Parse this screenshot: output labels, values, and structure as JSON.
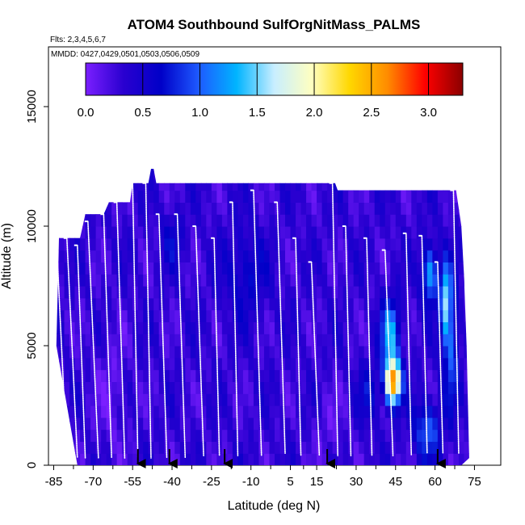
{
  "chart_data": {
    "type": "heatmap",
    "title": "ATOM4 Southbound SulfOrgNitMass_PALMS",
    "subtitle_flights": "Flts: 2,3,4,5,6,7",
    "subtitle_dates": "MMDD: 0427,0429,0501,0503,0506,0509",
    "xlabel": "Latitude (deg N)",
    "ylabel": "Altitude (m)",
    "xlim": [
      -87,
      85
    ],
    "ylim": [
      0,
      17500
    ],
    "x_ticks": [
      -85,
      -70,
      -55,
      -40,
      -25,
      -10,
      5,
      15,
      30,
      45,
      60,
      75
    ],
    "x_tick_labels": [
      "-85",
      "-70",
      "-55",
      "-40",
      "-25",
      "-10",
      "5",
      "15",
      "30",
      "45",
      "60",
      "75"
    ],
    "y_ticks": [
      0,
      5000,
      10000,
      15000
    ],
    "y_tick_labels": [
      "0",
      "5000",
      "10000",
      "15000"
    ],
    "colorbar": {
      "range": [
        0,
        3.3
      ],
      "ticks": [
        0,
        0.5,
        1,
        1.5,
        2,
        2.5,
        3
      ],
      "tick_labels": [
        "0.0",
        "0.5",
        "1.0",
        "1.5",
        "2.0",
        "2.5",
        "3.0"
      ],
      "stops": [
        "#7B1FFF",
        "#2A00D0",
        "#0000C8",
        "#1E5AFF",
        "#00B4FF",
        "#C8EEFF",
        "#FFFFC0",
        "#FFD700",
        "#FF8C00",
        "#FF0000",
        "#8B0000"
      ]
    },
    "ceiling_profile": [
      {
        "x": -84,
        "alt": 5000
      },
      {
        "x": -83,
        "alt": 9500
      },
      {
        "x": -75,
        "alt": 9500
      },
      {
        "x": -73,
        "alt": 10500
      },
      {
        "x": -66,
        "alt": 10500
      },
      {
        "x": -64,
        "alt": 11000
      },
      {
        "x": -56,
        "alt": 11000
      },
      {
        "x": -55,
        "alt": 11800
      },
      {
        "x": -49,
        "alt": 11800
      },
      {
        "x": -48,
        "alt": 12400
      },
      {
        "x": -47,
        "alt": 12400
      },
      {
        "x": -46,
        "alt": 11800
      },
      {
        "x": 22,
        "alt": 11800
      },
      {
        "x": 23,
        "alt": 11500
      },
      {
        "x": 68,
        "alt": 11500
      },
      {
        "x": 70,
        "alt": 10000
      },
      {
        "x": 71,
        "alt": 8000
      },
      {
        "x": 72,
        "alt": 5000
      },
      {
        "x": 73,
        "alt": 300
      }
    ],
    "floor_profile": [
      {
        "x": 73,
        "alt": 300
      },
      {
        "x": 70,
        "alt": 0
      },
      {
        "x": -76,
        "alt": 0
      },
      {
        "x": -80,
        "alt": 2500
      },
      {
        "x": -84,
        "alt": 5000
      }
    ],
    "background_value": 0.3,
    "enhancements": [
      {
        "x": 44,
        "alt": 3500,
        "peak": 2.4,
        "sx": 3.0,
        "sy": 900
      },
      {
        "x": 43,
        "alt": 5500,
        "peak": 1.0,
        "sx": 3.5,
        "sy": 1400
      },
      {
        "x": 58,
        "alt": 8000,
        "peak": 1.0,
        "sx": 3.0,
        "sy": 1200
      },
      {
        "x": 64,
        "alt": 7000,
        "peak": 1.1,
        "sx": 2.0,
        "sy": 1500
      },
      {
        "x": 57,
        "alt": 1500,
        "peak": 0.7,
        "sx": 5.0,
        "sy": 1200
      },
      {
        "x": 66,
        "alt": 5000,
        "peak": 0.7,
        "sx": 3.0,
        "sy": 2500
      },
      {
        "x": -12,
        "alt": 8000,
        "peak": 0.35,
        "sx": 8.0,
        "sy": 1800
      },
      {
        "x": -40,
        "alt": 9500,
        "peak": 0.3,
        "sx": 4.0,
        "sy": 1200
      },
      {
        "x": 35,
        "alt": 3000,
        "peak": 0.35,
        "sx": 4.0,
        "sy": 1200
      },
      {
        "x": -63,
        "alt": 3000,
        "peak": -0.2,
        "sx": 6.0,
        "sy": 2500
      },
      {
        "x": 20,
        "alt": 1500,
        "peak": -0.15,
        "sx": 6.0,
        "sy": 1500
      }
    ],
    "flight_tracks": [
      {
        "x0": -84,
        "a0": 9500,
        "x1": -80,
        "a1": 300
      },
      {
        "x0": -80,
        "a0": 9500,
        "x1": -76,
        "a1": 300
      },
      {
        "x0": -76,
        "a0": 9200,
        "x1": -73,
        "a1": 300
      },
      {
        "x0": -72,
        "a0": 10200,
        "x1": -68,
        "a1": 300
      },
      {
        "x0": -66,
        "a0": 10500,
        "x1": -63,
        "a1": 300
      },
      {
        "x0": -61,
        "a0": 11000,
        "x1": -58,
        "a1": 300
      },
      {
        "x0": -55,
        "a0": 11800,
        "x1": -53,
        "a1": 300
      },
      {
        "x0": -50,
        "a0": 11800,
        "x1": -48,
        "a1": 300
      },
      {
        "x0": -45,
        "a0": 10500,
        "x1": -42,
        "a1": 300
      },
      {
        "x0": -38,
        "a0": 10500,
        "x1": -35,
        "a1": 300
      },
      {
        "x0": -31,
        "a0": 10000,
        "x1": -28,
        "a1": 400
      },
      {
        "x0": -24,
        "a0": 9500,
        "x1": -22,
        "a1": 400
      },
      {
        "x0": -17,
        "a0": 11000,
        "x1": -15,
        "a1": 400
      },
      {
        "x0": -9,
        "a0": 11500,
        "x1": -6,
        "a1": 400
      },
      {
        "x0": 0,
        "a0": 11000,
        "x1": 3,
        "a1": 500
      },
      {
        "x0": 7,
        "a0": 9500,
        "x1": 9,
        "a1": 400
      },
      {
        "x0": 13,
        "a0": 8500,
        "x1": 16,
        "a1": 400
      },
      {
        "x0": 21,
        "a0": 11800,
        "x1": 23,
        "a1": 400
      },
      {
        "x0": 26,
        "a0": 10000,
        "x1": 28,
        "a1": 400
      },
      {
        "x0": 34,
        "a0": 9500,
        "x1": 36,
        "a1": 400
      },
      {
        "x0": 41,
        "a0": 9000,
        "x1": 44,
        "a1": 400
      },
      {
        "x0": 49,
        "a0": 9700,
        "x1": 51,
        "a1": 400
      },
      {
        "x0": 55,
        "a0": 9600,
        "x1": 57,
        "a1": 500
      },
      {
        "x0": 61,
        "a0": 8500,
        "x1": 63,
        "a1": 500
      },
      {
        "x0": 67,
        "a0": 11500,
        "x1": 69,
        "a1": 500
      }
    ],
    "arrow_markers_lat": [
      -53,
      -41,
      -20,
      19,
      61
    ]
  }
}
